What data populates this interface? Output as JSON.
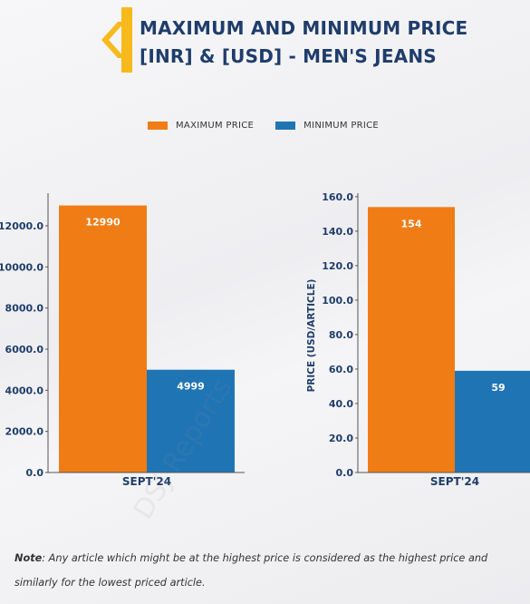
{
  "header": {
    "title_line1": "MAXIMUM AND MINIMUM PRICE",
    "title_line2": "[INR] & [USD] - MEN'S JEANS"
  },
  "colors": {
    "max": "#f07c16",
    "min": "#1f74b4",
    "title": "#1f3d6b",
    "accent": "#f8b91c"
  },
  "legend": {
    "max_label": "MAXIMUM PRICE",
    "min_label": "MINIMUM PRICE"
  },
  "chart_data": [
    {
      "type": "bar",
      "categories": [
        "SEPT'24"
      ],
      "series": [
        {
          "name": "MAXIMUM PRICE",
          "values": [
            12990
          ]
        },
        {
          "name": "MINIMUM PRICE",
          "values": [
            4999
          ]
        }
      ],
      "data_labels": [
        "12990",
        "4999"
      ],
      "yticks": [
        "0.0",
        "2000.0",
        "4000.0",
        "6000.0",
        "8000.0",
        "10000.0",
        "12000.0"
      ],
      "ylim": [
        0,
        13500
      ],
      "ylabel": "",
      "grid": false
    },
    {
      "type": "bar",
      "categories": [
        "SEPT'24"
      ],
      "series": [
        {
          "name": "MAXIMUM PRICE",
          "values": [
            154
          ]
        },
        {
          "name": "MINIMUM PRICE",
          "values": [
            59
          ]
        }
      ],
      "data_labels": [
        "154",
        "59"
      ],
      "yticks": [
        "0.0",
        "20.0",
        "40.0",
        "60.0",
        "80.0",
        "100.0",
        "120.0",
        "140.0",
        "160.0"
      ],
      "ylim": [
        0,
        161
      ],
      "ylabel": "PRICE (USD/ARTICLE)",
      "grid": false
    }
  ],
  "note": {
    "label": "Note",
    "text": ": Any article which might be at the highest price is considered as the highest price and similarly for the lowest priced article."
  },
  "watermark": "DSJ Reports"
}
